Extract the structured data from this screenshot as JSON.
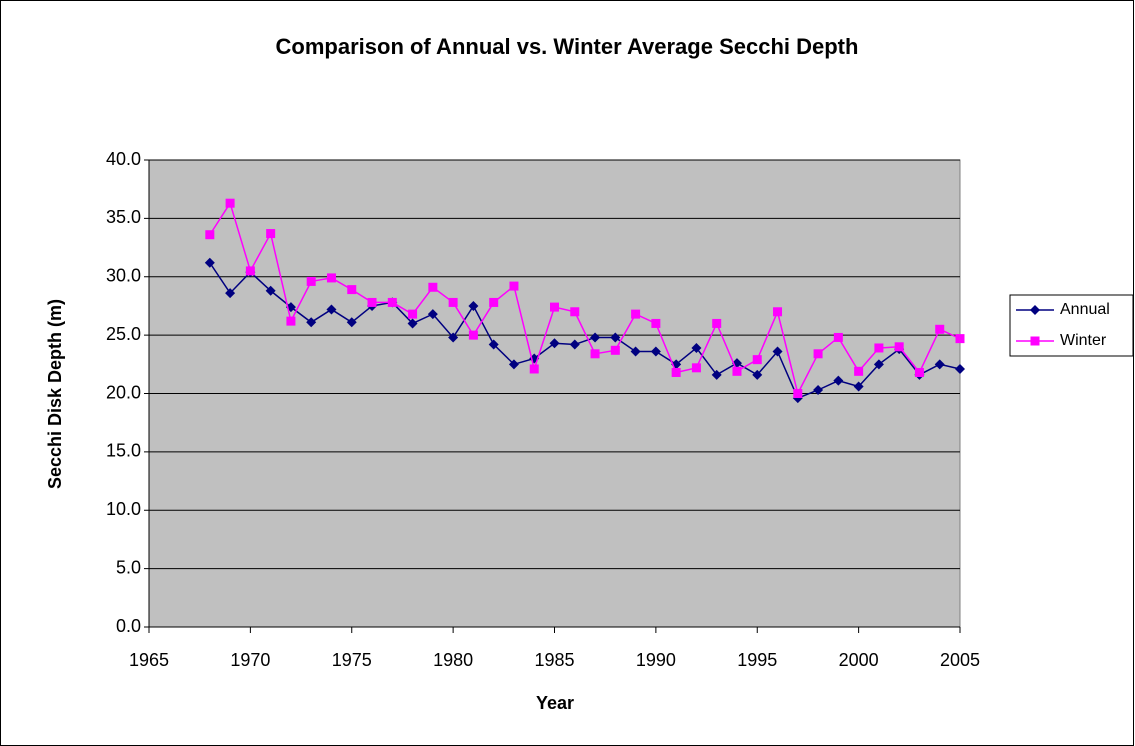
{
  "chart_data": {
    "type": "line",
    "title": "Comparison of Annual vs. Winter Average Secchi Depth",
    "x_label": "Year",
    "y_label": "Secchi Disk Depth (m)",
    "x": [
      1968,
      1969,
      1970,
      1971,
      1972,
      1973,
      1974,
      1975,
      1976,
      1977,
      1978,
      1979,
      1980,
      1981,
      1982,
      1983,
      1984,
      1985,
      1986,
      1987,
      1988,
      1989,
      1990,
      1991,
      1992,
      1993,
      1994,
      1995,
      1996,
      1997,
      1998,
      1999,
      2000,
      2001,
      2002,
      2003,
      2004,
      2005
    ],
    "series": [
      {
        "name": "Annual",
        "color": "#000080",
        "marker": "diamond",
        "values": [
          31.2,
          28.6,
          30.4,
          28.8,
          27.4,
          26.1,
          27.2,
          26.1,
          27.5,
          27.8,
          26.0,
          26.8,
          24.8,
          27.5,
          24.2,
          22.5,
          23.0,
          24.3,
          24.2,
          24.8,
          24.8,
          23.6,
          23.6,
          22.5,
          23.9,
          21.6,
          22.6,
          21.6,
          23.6,
          19.6,
          20.3,
          21.1,
          20.6,
          22.5,
          23.8,
          21.6,
          22.5,
          22.1
        ]
      },
      {
        "name": "Winter",
        "color": "#ff00ff",
        "marker": "square",
        "values": [
          33.6,
          36.3,
          30.5,
          33.7,
          26.2,
          29.6,
          29.9,
          28.9,
          27.8,
          27.8,
          26.8,
          29.1,
          27.8,
          25.0,
          27.8,
          29.2,
          22.1,
          27.4,
          27.0,
          23.4,
          23.7,
          26.8,
          26.0,
          21.8,
          22.2,
          26.0,
          21.9,
          22.9,
          27.0,
          20.0,
          23.4,
          24.8,
          21.9,
          23.9,
          24.0,
          21.8,
          25.5,
          24.7
        ]
      }
    ],
    "xlim": [
      1965,
      2005
    ],
    "xticks": [
      1965,
      1970,
      1975,
      1980,
      1985,
      1990,
      1995,
      2000,
      2005
    ],
    "ylim": [
      0,
      40
    ],
    "yticks": [
      {
        "value": 0,
        "label": "0.0"
      },
      {
        "value": 5,
        "label": "5.0"
      },
      {
        "value": 10,
        "label": "10.0"
      },
      {
        "value": 15,
        "label": "15.0"
      },
      {
        "value": 20,
        "label": "20.0"
      },
      {
        "value": 25,
        "label": "25.0"
      },
      {
        "value": 30,
        "label": "30.0"
      },
      {
        "value": 35,
        "label": "35.0"
      },
      {
        "value": 40,
        "label": "40.0"
      }
    ],
    "grid": true,
    "plot_background": "#c0c0c0",
    "legend_position": "right"
  }
}
